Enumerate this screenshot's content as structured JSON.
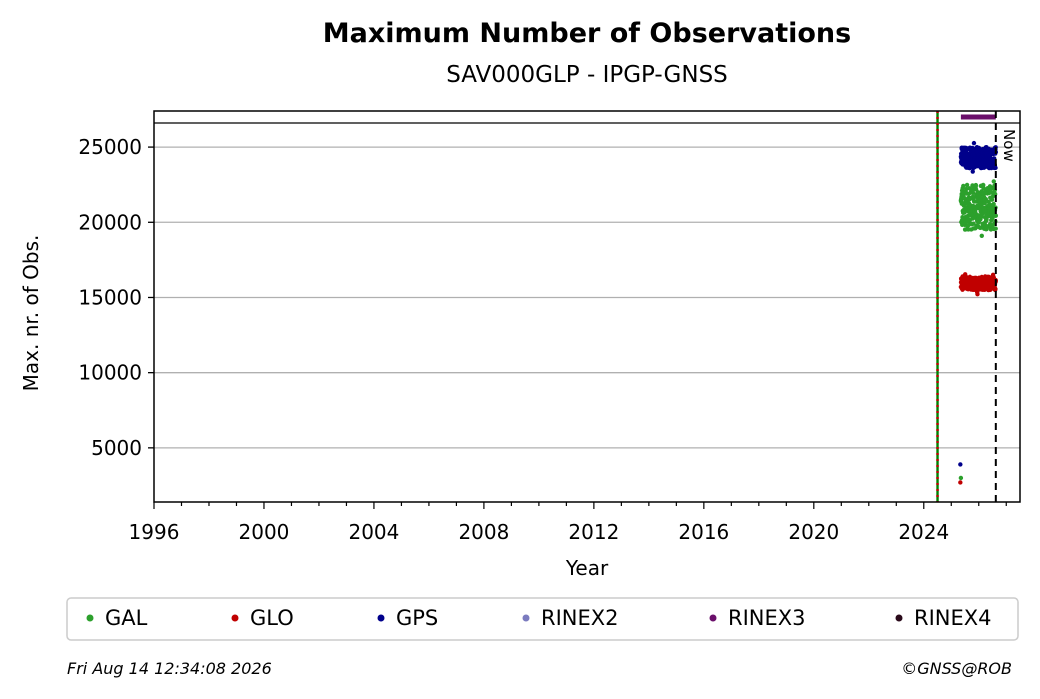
{
  "chart_data": {
    "type": "scatter",
    "title": "Maximum Number of Observations",
    "subtitle": "SAV000GLP - IPGP-GNSS",
    "xlabel": "Year",
    "ylabel": "Max. nr. of Obs.",
    "xlim": [
      1996,
      2027.5
    ],
    "ylim": [
      1400,
      27400
    ],
    "x_ticks": [
      1996,
      2000,
      2004,
      2008,
      2012,
      2016,
      2020,
      2024
    ],
    "y_ticks": [
      5000,
      10000,
      15000,
      20000,
      25000
    ],
    "grid": "horizontal",
    "upper_line_y": 26600,
    "vertical_lines": [
      {
        "x": 2024.5,
        "style": "solid-dotted",
        "colors": [
          "#008000",
          "#c00000"
        ]
      },
      {
        "x": 2026.62,
        "style": "dashed",
        "color": "#000000",
        "label": "Now"
      }
    ],
    "series": [
      {
        "name": "GAL",
        "color": "#2ca02c",
        "band": {
          "x_start": 2025.35,
          "x_end": 2026.62,
          "y_low": 19500,
          "y_high": 22500,
          "y_min": 18600,
          "y_max": 23500
        },
        "outliers": [
          {
            "x": 2025.35,
            "y": 3000
          }
        ]
      },
      {
        "name": "GLO",
        "color": "#c00000",
        "band": {
          "x_start": 2025.35,
          "x_end": 2026.62,
          "y_low": 15500,
          "y_high": 16400,
          "y_min": 15200,
          "y_max": 16600
        },
        "outliers": [
          {
            "x": 2025.33,
            "y": 2700
          }
        ]
      },
      {
        "name": "GPS",
        "color": "#00008b",
        "band": {
          "x_start": 2025.35,
          "x_end": 2026.62,
          "y_low": 23600,
          "y_high": 25000,
          "y_min": 23300,
          "y_max": 25400
        },
        "outliers": [
          {
            "x": 2025.33,
            "y": 3900
          }
        ]
      },
      {
        "name": "RINEX2",
        "color": "#7b7bbf",
        "band": null,
        "outliers": []
      },
      {
        "name": "RINEX3",
        "color": "#6a0f6a",
        "line": {
          "x_start": 2025.35,
          "x_end": 2026.62,
          "y": 27000
        },
        "outliers": []
      },
      {
        "name": "RINEX4",
        "color": "#2a0a1a",
        "band": null,
        "outliers": []
      }
    ],
    "now_label": "Now",
    "legend_position": "bottom"
  },
  "footer": {
    "timestamp": "Fri Aug 14 12:34:08 2026",
    "copyright": "©GNSS@ROB"
  }
}
